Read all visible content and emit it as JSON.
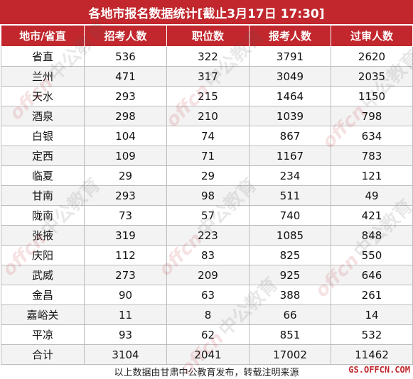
{
  "title": "各地市报名数据统计[截止3月17日 17:30]",
  "headers": [
    "地市/省直",
    "招考人数",
    "职位数",
    "报考人数",
    "过审人数"
  ],
  "rows": [
    [
      "省直",
      "536",
      "322",
      "3791",
      "2620"
    ],
    [
      "兰州",
      "471",
      "317",
      "3049",
      "2035"
    ],
    [
      "天水",
      "293",
      "215",
      "1464",
      "1150"
    ],
    [
      "酒泉",
      "298",
      "210",
      "1039",
      "798"
    ],
    [
      "白银",
      "104",
      "74",
      "867",
      "634"
    ],
    [
      "定西",
      "109",
      "71",
      "1167",
      "783"
    ],
    [
      "临夏",
      "29",
      "29",
      "234",
      "121"
    ],
    [
      "甘南",
      "293",
      "98",
      "511",
      "49"
    ],
    [
      "陇南",
      "73",
      "57",
      "740",
      "421"
    ],
    [
      "张掖",
      "319",
      "223",
      "1085",
      "848"
    ],
    [
      "庆阳",
      "112",
      "83",
      "825",
      "550"
    ],
    [
      "武威",
      "273",
      "209",
      "925",
      "646"
    ],
    [
      "金昌",
      "90",
      "63",
      "388",
      "261"
    ],
    [
      "嘉峪关",
      "11",
      "8",
      "66",
      "14"
    ],
    [
      "平凉",
      "93",
      "62",
      "851",
      "532"
    ]
  ],
  "total": [
    "合计",
    "3104",
    "2041",
    "17002",
    "11462"
  ],
  "footer": "以上数据由甘肃中公教育发布，转载注明来源",
  "site": "GS.OFFCN.COM",
  "watermark": {
    "brand": "offcn",
    "cn": "中公教育"
  },
  "colors": {
    "header_red": "#c1272d"
  }
}
